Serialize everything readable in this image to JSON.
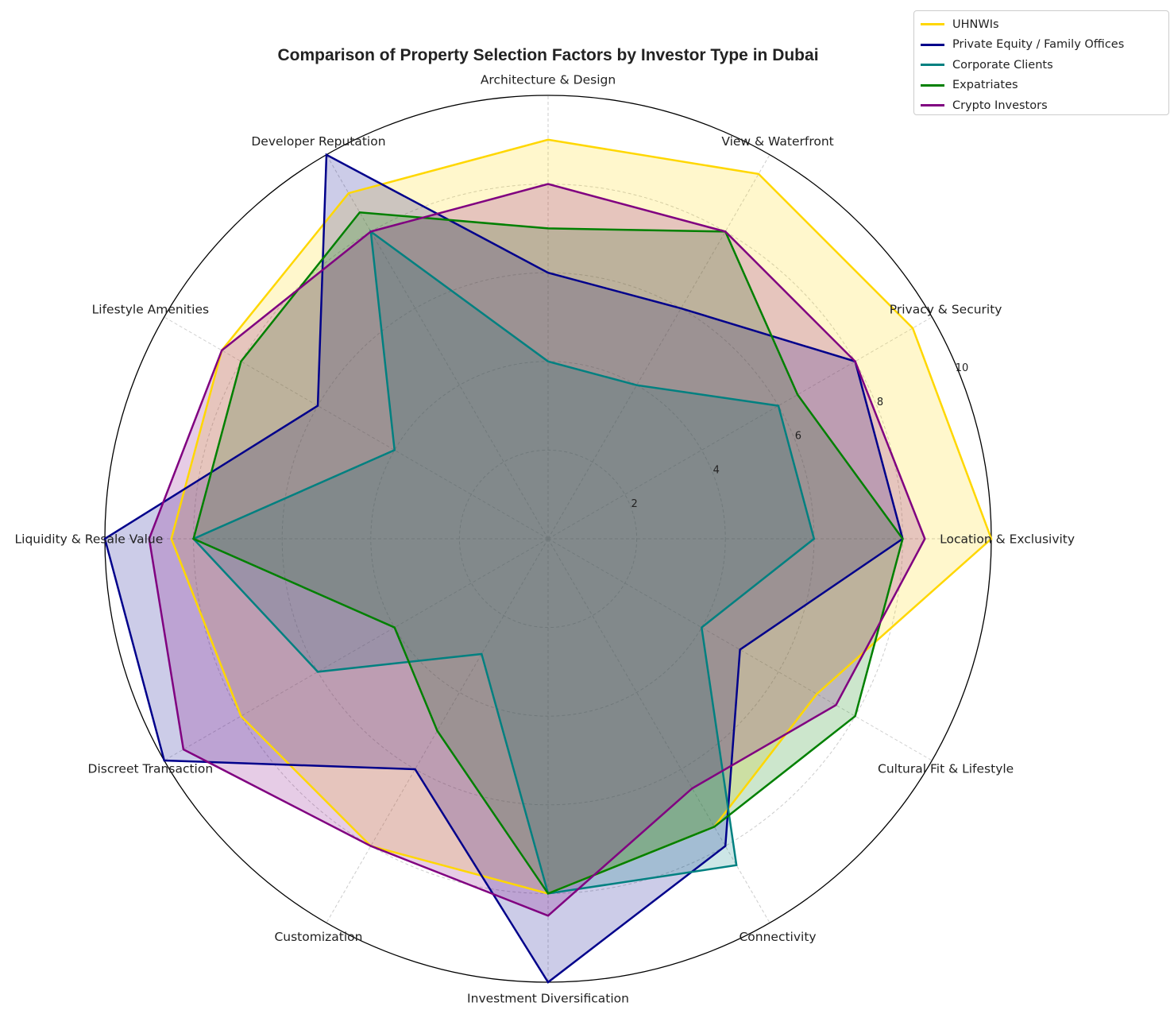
{
  "chart_data": {
    "type": "radar",
    "title": "Comparison of Property Selection Factors by Investor Type in Dubai",
    "categories": [
      "Location & Exclusivity",
      "Privacy & Security",
      "View & Waterfront",
      "Architecture & Design",
      "Developer Reputation",
      "Lifestyle Amenities",
      "Liquidity & Resale Value",
      "Discreet Transaction",
      "Customization",
      "Investment Diversification",
      "Connectivity",
      "Cultural Fit & Lifestyle"
    ],
    "rlim": [
      0,
      10
    ],
    "radial_ticks": [
      "2",
      "4",
      "6",
      "8",
      "10"
    ],
    "grid": true,
    "legend_position": "top-right",
    "series": [
      {
        "name": "UHNWIs",
        "color": "#FFD700",
        "values": [
          10,
          9.5,
          9.5,
          9,
          9,
          8.5,
          8.5,
          8,
          8,
          8,
          7.5,
          7
        ]
      },
      {
        "name": "Private Equity / Family Offices",
        "color": "#00008B",
        "values": [
          8,
          8,
          6,
          6,
          10,
          6,
          10,
          10,
          6,
          10,
          8,
          5
        ]
      },
      {
        "name": "Corporate Clients",
        "color": "#008080",
        "values": [
          6,
          6,
          4,
          4,
          8,
          4,
          8,
          6,
          3,
          8,
          8.5,
          4
        ]
      },
      {
        "name": "Expatriates",
        "color": "#008000",
        "values": [
          8,
          6.5,
          8,
          7,
          8.5,
          8,
          8,
          4,
          5,
          8,
          7.5,
          8
        ]
      },
      {
        "name": "Crypto Investors",
        "color": "#800080",
        "values": [
          8.5,
          8,
          8,
          8,
          8,
          8.5,
          9,
          9.5,
          8,
          8.5,
          6.5,
          7.5
        ]
      }
    ]
  }
}
